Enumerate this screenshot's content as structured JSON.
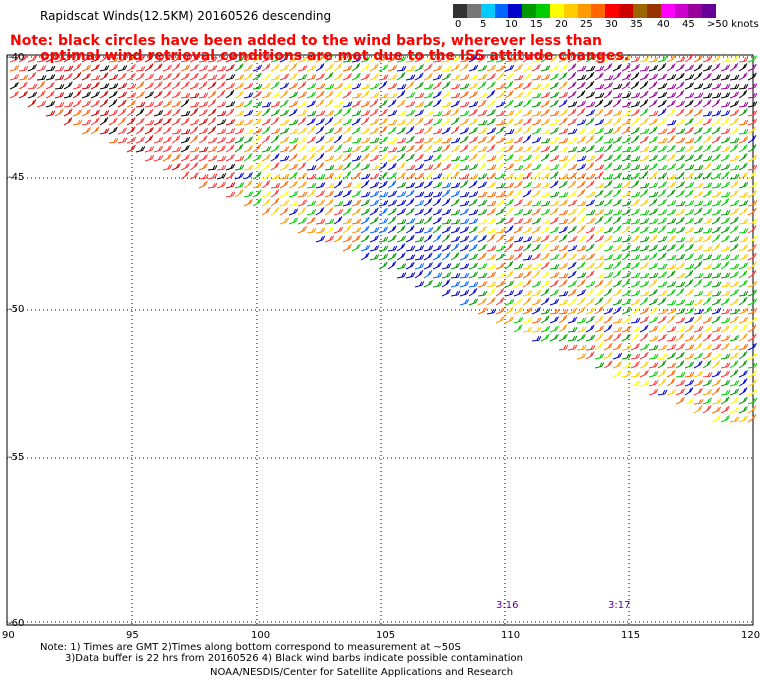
{
  "header": {
    "title": "Rapidscat Winds(12.5KM) 20160526 descending",
    "note_line1": "Note: black circles have been added to the wind barbs, wherever less than",
    "note_line2": "optimal wind retrieval conditions are met due to the ISS attitude changes."
  },
  "legend": {
    "labels": [
      "0",
      "5",
      "10",
      "15",
      "20",
      "25",
      "30",
      "35",
      "40",
      "45",
      ">50 knots"
    ],
    "colors": [
      "#333333",
      "#777777",
      "#00ccff",
      "#0066ff",
      "#0000cc",
      "#009900",
      "#00cc00",
      "#ffff00",
      "#ffcc00",
      "#ff9900",
      "#ff6600",
      "#ff0000",
      "#cc0000",
      "#996600",
      "#993300",
      "#ff00ff",
      "#cc00cc",
      "#990099",
      "#660099"
    ]
  },
  "map": {
    "lat_labels": [
      "-40",
      "-45",
      "-50",
      "-55",
      "-60"
    ],
    "lon_labels": [
      "90",
      "95",
      "100",
      "105",
      "110",
      "115",
      "120"
    ],
    "time_labels": [
      "3:16",
      "3:17"
    ]
  },
  "footer": {
    "line1": "Note: 1) Times are GMT 2)Times along bottom correspond to measurement at ~50S",
    "line2": "3)Data buffer is 22 hrs from 20160526 4) Black wind barbs indicate possible contamination",
    "line3": "NOAA/NESDIS/Center for Satellite Applications and Research"
  }
}
